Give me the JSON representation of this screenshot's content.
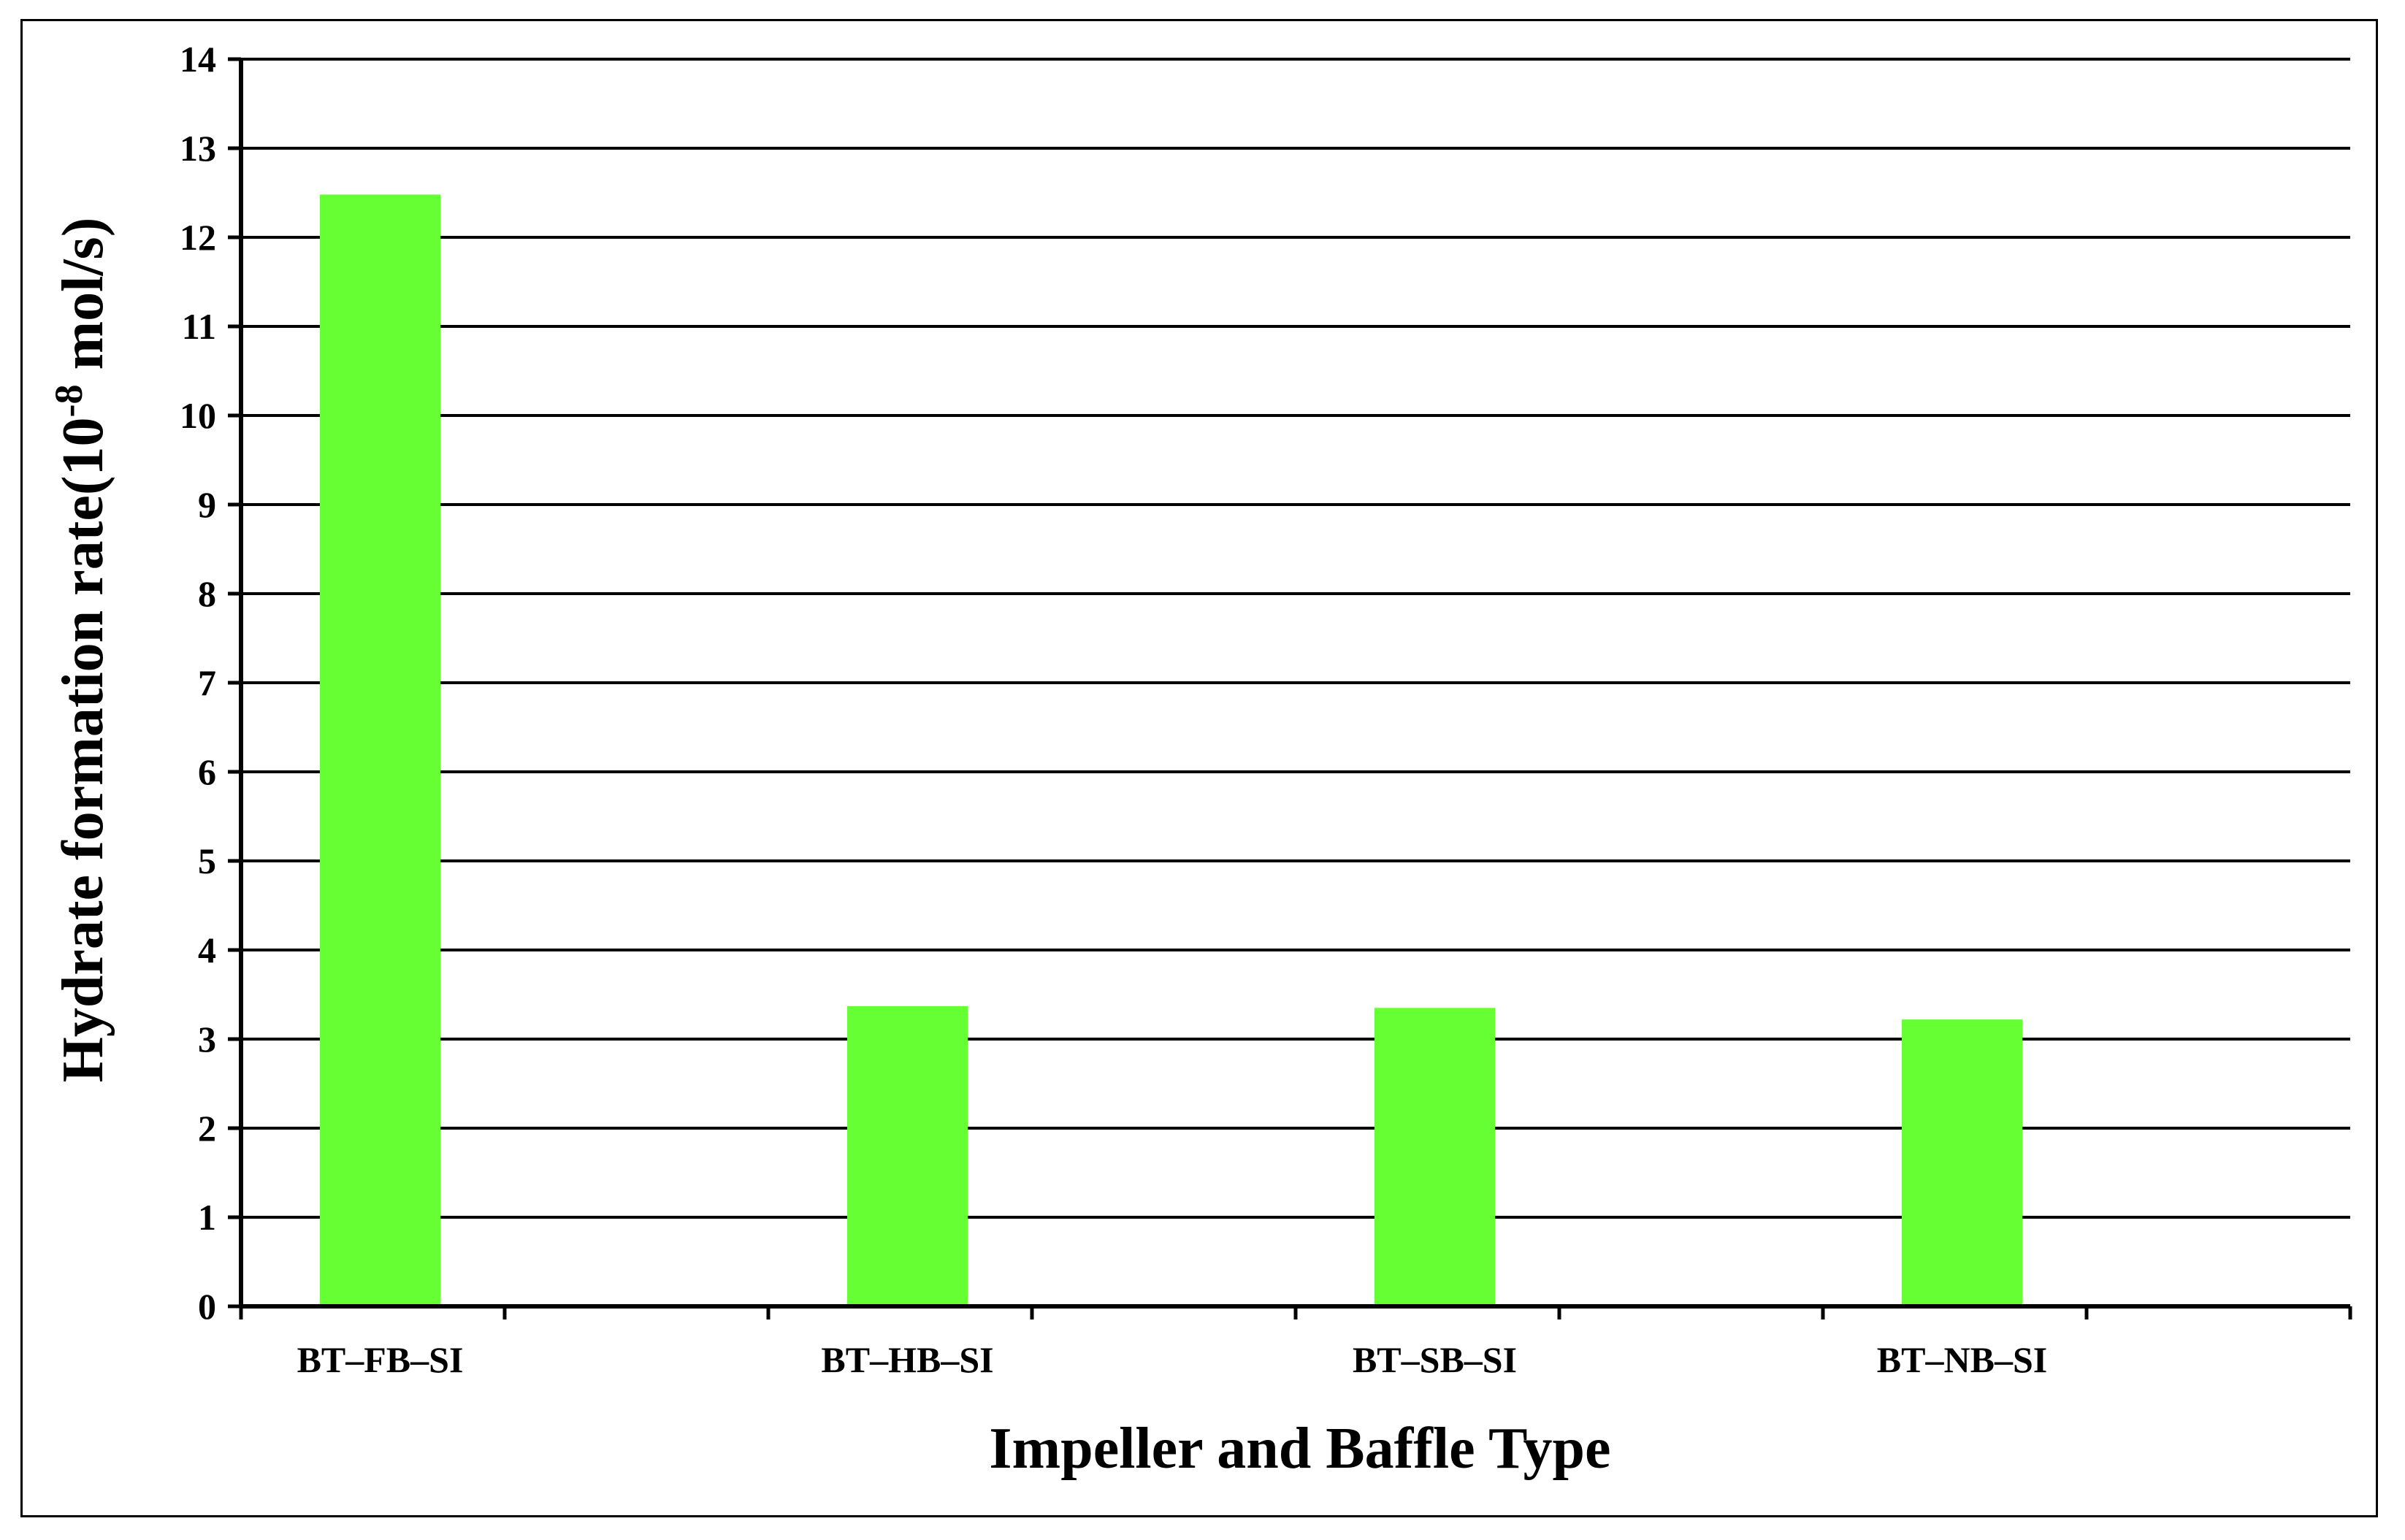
{
  "chart_data": {
    "type": "bar",
    "categories": [
      "BT–FB–SI",
      "BT–HB–SI",
      "BT–SB–SI",
      "BT–NB–SI"
    ],
    "values": [
      12.48,
      3.37,
      3.35,
      3.22
    ],
    "title": "",
    "xlabel": "Impeller and Baffle Type",
    "ylabel_main": "Hydrate formation rate(10",
    "ylabel_sup": "-8",
    "ylabel_end": " mol/s)",
    "ylim": [
      0,
      14
    ],
    "yticks": [
      0,
      1,
      2,
      3,
      4,
      5,
      6,
      7,
      8,
      9,
      10,
      11,
      12,
      13,
      14
    ],
    "grid": true,
    "legend": "none",
    "bar_color": "#66ff33",
    "grid_color": "#000000"
  }
}
